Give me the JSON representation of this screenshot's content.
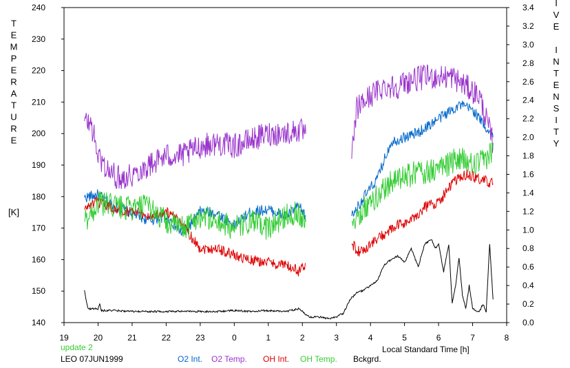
{
  "chart_data": {
    "type": "line",
    "title": "",
    "xlabel": "Local Standard Time [h]",
    "ylabel": "TEMPERATURE [K]",
    "ylabel_units": "[K]",
    "y2label": "RELATIVE INTENSITY",
    "x_ticks": [
      "19",
      "20",
      "21",
      "22",
      "23",
      "0",
      "1",
      "2",
      "3",
      "4",
      "5",
      "6",
      "7",
      "8"
    ],
    "xlim": [
      19,
      32
    ],
    "ylim": [
      140,
      240
    ],
    "y_ticks": [
      140,
      150,
      160,
      170,
      180,
      190,
      200,
      210,
      220,
      230,
      240
    ],
    "y2lim": [
      0.0,
      3.4
    ],
    "y2_ticks": [
      "0.0",
      "0.2",
      "0.4",
      "0.6",
      "0.8",
      "1.0",
      "1.2",
      "1.4",
      "1.6",
      "1.8",
      "2.0",
      "2.2",
      "2.4",
      "2.6",
      "2.8",
      "3.0",
      "3.2",
      "3.4"
    ],
    "grid": false,
    "legend_location": "bottom",
    "series": [
      {
        "name": "O2 Int.",
        "axis": "right",
        "color": "#0066cc",
        "x": [
          19.6,
          20.0,
          20.5,
          21.0,
          21.5,
          22.0,
          22.5,
          23.0,
          23.5,
          24.0,
          24.5,
          25.0,
          25.5,
          25.9,
          26.1,
          27.45,
          27.8,
          28.2,
          28.6,
          29.0,
          29.4,
          29.8,
          30.2,
          30.6,
          31.0,
          31.3,
          31.6
        ],
        "y": [
          1.35,
          1.38,
          1.25,
          1.18,
          1.1,
          1.15,
          0.95,
          1.2,
          1.18,
          1.05,
          1.2,
          1.22,
          1.15,
          1.25,
          1.15,
          1.15,
          1.35,
          1.55,
          1.95,
          2.0,
          2.05,
          2.15,
          2.25,
          2.35,
          2.3,
          2.15,
          2.0
        ]
      },
      {
        "name": "O2 Temp.",
        "axis": "left",
        "color": "#9933cc",
        "x": [
          19.6,
          19.8,
          20.0,
          20.3,
          20.6,
          21.0,
          21.5,
          22.0,
          22.5,
          23.0,
          23.5,
          24.0,
          24.5,
          25.0,
          25.5,
          25.9,
          26.1,
          27.45,
          27.6,
          28.0,
          28.4,
          28.8,
          29.2,
          29.6,
          30.0,
          30.4,
          30.8,
          31.2,
          31.6
        ],
        "y": [
          204,
          203,
          193,
          188,
          186,
          187,
          190,
          193,
          193,
          196,
          197,
          196,
          198,
          200,
          200,
          201,
          200,
          192,
          208,
          212,
          215,
          215,
          217,
          218,
          218,
          218,
          215,
          212,
          197
        ]
      },
      {
        "name": "OH Int.",
        "axis": "right",
        "color": "#dd0000",
        "x": [
          19.6,
          19.8,
          20.0,
          20.5,
          21.0,
          21.5,
          22.0,
          22.5,
          23.0,
          23.5,
          24.0,
          24.5,
          25.0,
          25.5,
          25.9,
          26.1,
          27.45,
          27.7,
          28.0,
          28.4,
          28.8,
          29.2,
          29.6,
          30.0,
          30.4,
          30.8,
          31.2,
          31.6
        ],
        "y": [
          1.22,
          1.28,
          1.3,
          1.22,
          1.2,
          1.15,
          1.2,
          1.05,
          0.8,
          0.8,
          0.73,
          0.67,
          0.65,
          0.62,
          0.55,
          0.64,
          0.85,
          0.75,
          0.85,
          0.95,
          1.05,
          1.1,
          1.25,
          1.3,
          1.5,
          1.6,
          1.55,
          1.5
        ]
      },
      {
        "name": "OH Temp.",
        "axis": "left",
        "color": "#33cc33",
        "x": [
          19.6,
          20.0,
          20.5,
          21.0,
          21.5,
          22.0,
          22.5,
          23.0,
          23.5,
          24.0,
          24.5,
          25.0,
          25.5,
          25.9,
          26.1,
          27.45,
          27.8,
          28.2,
          28.6,
          29.0,
          29.4,
          29.8,
          30.2,
          30.6,
          31.0,
          31.3,
          31.6
        ],
        "y": [
          172,
          178,
          177,
          176,
          177,
          172,
          170,
          174,
          172,
          170,
          172,
          170,
          174,
          175,
          172,
          172,
          176,
          180,
          185,
          186,
          188,
          188,
          190,
          192,
          190,
          191,
          195
        ]
      },
      {
        "name": "Bckgrd.",
        "axis": "right",
        "color": "#000000",
        "x": [
          19.6,
          19.7,
          20.0,
          20.05,
          20.1,
          20.5,
          21.0,
          21.5,
          22.0,
          22.5,
          23.0,
          23.5,
          24.0,
          24.5,
          25.0,
          25.5,
          25.9,
          26.2,
          26.5,
          26.8,
          27.0,
          27.2,
          27.4,
          27.6,
          27.8,
          28.0,
          28.2,
          28.4,
          28.6,
          28.8,
          29.0,
          29.2,
          29.4,
          29.6,
          29.8,
          29.9,
          30.0,
          30.15,
          30.3,
          30.4,
          30.5,
          30.6,
          30.7,
          30.8,
          30.9,
          31.0,
          31.1,
          31.2,
          31.3,
          31.4,
          31.5,
          31.6
        ],
        "y": [
          0.35,
          0.15,
          0.15,
          0.2,
          0.13,
          0.13,
          0.12,
          0.12,
          0.12,
          0.12,
          0.12,
          0.12,
          0.13,
          0.12,
          0.13,
          0.12,
          0.15,
          0.06,
          0.06,
          0.04,
          0.06,
          0.1,
          0.25,
          0.32,
          0.35,
          0.4,
          0.45,
          0.62,
          0.68,
          0.72,
          0.65,
          0.8,
          0.6,
          0.85,
          0.9,
          0.8,
          0.85,
          0.55,
          0.85,
          0.2,
          0.4,
          0.7,
          0.3,
          0.15,
          0.4,
          0.15,
          0.13,
          0.12,
          0.2,
          0.12,
          0.85,
          0.25
        ]
      }
    ]
  },
  "footer": {
    "update_label": "update 2",
    "station_label": "LEO 07JUN1999"
  },
  "legend": [
    {
      "label": "O2 Int.",
      "color": "#0066cc"
    },
    {
      "label": "O2 Temp.",
      "color": "#9933cc"
    },
    {
      "label": "OH Int.",
      "color": "#dd0000"
    },
    {
      "label": "OH Temp.",
      "color": "#33cc33"
    },
    {
      "label": "Bckgrd.",
      "color": "#000000"
    }
  ],
  "colors": {
    "update_label": "#33cc33",
    "axis": "#000000"
  }
}
